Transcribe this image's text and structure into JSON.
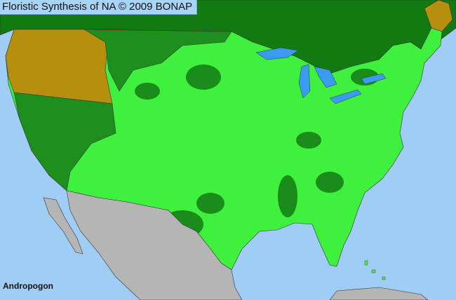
{
  "header": {
    "title": "Floristic Synthesis of NA © 2009 BONAP"
  },
  "map": {
    "taxon_label": "Andropogon",
    "colors": {
      "ocean": "#9fcdf5",
      "lakes": "#3a9cf0",
      "canada": "#117a11",
      "native_state": "#1d8f1d",
      "present_county": "#3ff03f",
      "present_county_dark": "#1a8c1a",
      "absent_state": "#b68f0e",
      "mexico": "#b5b5b5",
      "borders": "#333333"
    }
  }
}
